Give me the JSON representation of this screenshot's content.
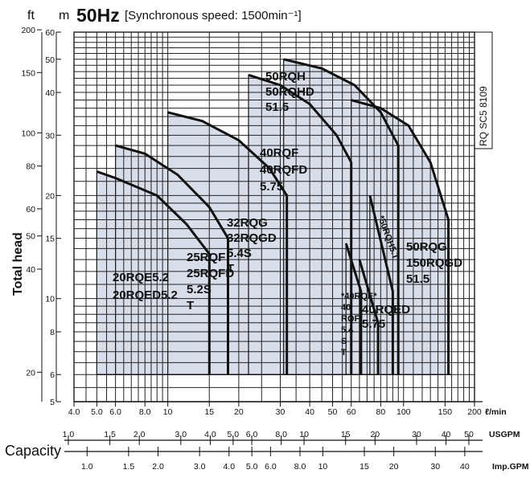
{
  "header": {
    "ft_unit": "ft",
    "m_unit": "m",
    "freq": "50Hz",
    "subtitle": "[Synchronous speed:  1500min⁻¹]"
  },
  "doc_code": "RQ SC5 8109",
  "chart_data": {
    "type": "area",
    "title": "50Hz",
    "subtitle": "[Synchronous speed:  1500min⁻¹]",
    "ylabel": "Total head",
    "xlabel": "Capacity",
    "x_scale": "log",
    "y_scale": "log",
    "xlim_l_per_min": [
      4,
      200
    ],
    "ylim_m": [
      5,
      60
    ],
    "x_axes": [
      {
        "unit": "ℓ/min",
        "ticks": [
          "4.0",
          "5.0",
          "6.0",
          "8.0",
          "10",
          "15",
          "20",
          "30",
          "40",
          "50",
          "60",
          "80",
          "100",
          "150",
          "200"
        ]
      },
      {
        "unit": "USGPM",
        "ticks": [
          "1.0",
          "1.5",
          "2.0",
          "3.0",
          "4.0",
          "5.0",
          "6.0",
          "8.0",
          "10",
          "15",
          "20",
          "30",
          "40",
          "50"
        ]
      },
      {
        "unit": "Imp.GPM",
        "ticks": [
          "1.0",
          "1.5",
          "2.0",
          "3.0",
          "4.0",
          "5.0",
          "6.0",
          "8.0",
          "10",
          "15",
          "20",
          "30",
          "40"
        ]
      }
    ],
    "y_axes": [
      {
        "unit": "m",
        "ticks": [
          "5",
          "6",
          "8",
          "10",
          "15",
          "20",
          "30",
          "40",
          "50",
          "60"
        ]
      },
      {
        "unit": "ft",
        "ticks": [
          "20",
          "40",
          "50",
          "60",
          "80",
          "100",
          "150",
          "200"
        ]
      }
    ],
    "regions": [
      {
        "labels": [
          "20RQE5.2",
          "20RQED5.2"
        ],
        "x": [
          5.0,
          5.0,
          6.0,
          9.0,
          12.0,
          15.0
        ],
        "y": [
          6.0,
          23.5,
          22.5,
          20.0,
          16.5,
          13.5
        ]
      },
      {
        "labels": [
          "25RQF",
          "25RQFD",
          "5.2S",
          "T"
        ],
        "x": [
          6.0,
          6.0,
          8.0,
          11.0,
          15.0,
          18.0
        ],
        "y": [
          6.0,
          28.0,
          26.5,
          23.0,
          18.5,
          15.0
        ]
      },
      {
        "labels": [
          "32RQG",
          "32RQGD",
          "5.4S",
          "T"
        ],
        "x": [
          10.0,
          10.0,
          14.0,
          20.0,
          27.0,
          32.0
        ],
        "y": [
          6.0,
          35.0,
          33.0,
          29.0,
          24.0,
          20.0
        ]
      },
      {
        "labels": [
          "40RQF",
          "40RQFD",
          "5.75"
        ],
        "x": [
          22.0,
          22.0,
          30.0,
          40.0,
          52.0,
          60.0
        ],
        "y": [
          6.0,
          45.0,
          42.0,
          37.0,
          30.0,
          25.0
        ]
      },
      {
        "labels": [
          "50RQH",
          "50RQHD",
          "51.5"
        ],
        "x": [
          31.0,
          31.0,
          45.0,
          62.0,
          80.0,
          95.0
        ],
        "y": [
          6.0,
          50.0,
          47.0,
          42.0,
          35.0,
          28.0
        ]
      },
      {
        "labels": [
          "50RQG",
          "150RQGD",
          "51.5"
        ],
        "x": [
          60.0,
          60.0,
          80.0,
          105.0,
          130.0,
          155.0
        ],
        "y": [
          6.0,
          38.0,
          36.0,
          32.0,
          25.0,
          17.0
        ]
      },
      {
        "labels": [
          "*40RQE*",
          "40",
          "RQF",
          "5.4",
          "S",
          "T"
        ],
        "x": [
          57.0,
          57.0,
          66.0
        ],
        "y": [
          6.0,
          14.5,
          10.5
        ]
      },
      {
        "labels": [
          "40RQED",
          "5.75"
        ],
        "x": [
          65.0,
          65.0,
          78.0
        ],
        "y": [
          6.0,
          13.0,
          8.5
        ]
      },
      {
        "labels": [
          "*50RQH5.T"
        ],
        "x": [
          72.0,
          72.0,
          90.0
        ],
        "y": [
          6.0,
          20.0,
          10.5
        ]
      }
    ]
  }
}
